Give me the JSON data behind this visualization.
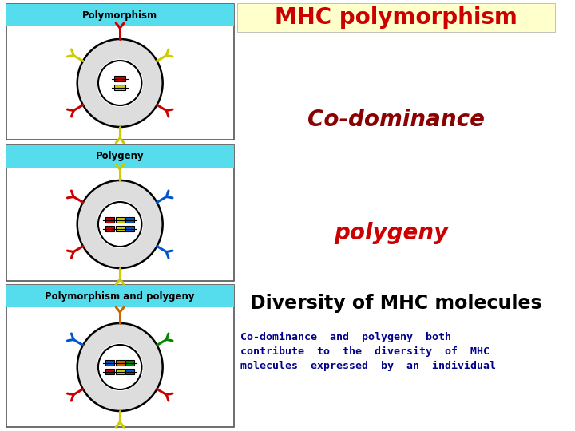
{
  "background_color": "#ffffff",
  "title_text": "MHC polymorphism",
  "title_color": "#cc0000",
  "title_bg": "#ffffcc",
  "codominance_text": "Co-dominance",
  "codominance_color": "#8b0000",
  "polygeny_text": "polygeny",
  "polygeny_color": "#cc0000",
  "diversity_text": "Diversity of MHC molecules",
  "diversity_color": "#000000",
  "caption_line1": "Co-dominance  and  polygeny  both",
  "caption_line2": "contribute  to  the  diversity  of  MHC",
  "caption_line3": "molecules  expressed  by  an  individual",
  "caption_color": "#00008b",
  "panel_bg": "#ffffff",
  "panel_border": "#555555",
  "panel_header_bg": "#55ddee",
  "panel1_label": "Polymorphism",
  "panel2_label": "Polygeny",
  "panel3_label": "Polymorphism and polygeny",
  "label_color": "#000000",
  "cell1_spikes": [
    [
      90,
      "#cc0000"
    ],
    [
      45,
      "#cccc00"
    ],
    [
      315,
      "#cccc00"
    ],
    [
      270,
      "#cccc00"
    ],
    [
      135,
      "#cc0000"
    ],
    [
      225,
      "#cc0000"
    ]
  ],
  "cell2_spikes": [
    [
      90,
      "#cccc00"
    ],
    [
      45,
      "#0055cc"
    ],
    [
      315,
      "#0055cc"
    ],
    [
      270,
      "#cccc00"
    ],
    [
      135,
      "#cc0000"
    ],
    [
      225,
      "#cc0000"
    ]
  ],
  "cell3_spikes": [
    [
      90,
      "#cc6600"
    ],
    [
      45,
      "#008800"
    ],
    [
      315,
      "#cc0000"
    ],
    [
      270,
      "#cccc00"
    ],
    [
      135,
      "#0055cc"
    ],
    [
      225,
      "#0055cc"
    ]
  ]
}
